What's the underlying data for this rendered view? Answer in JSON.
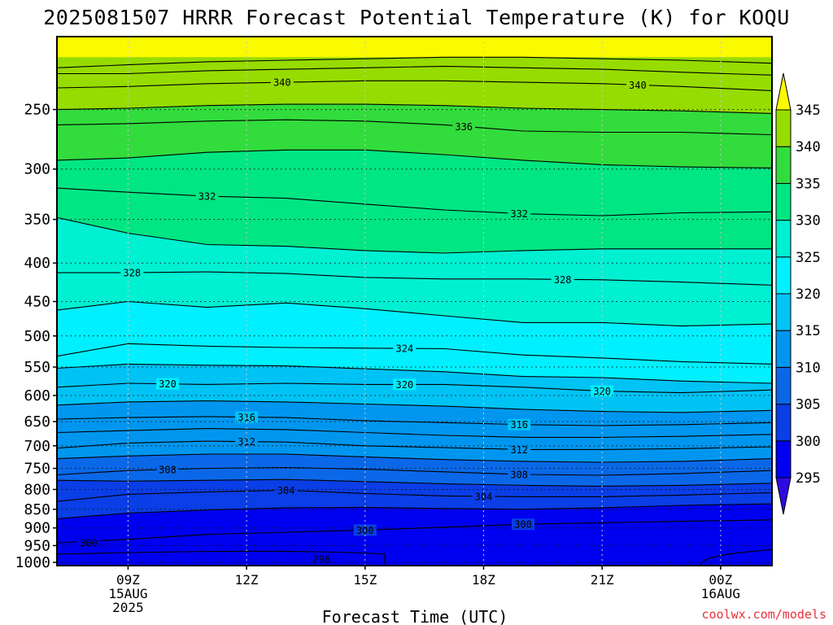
{
  "chart_data": {
    "type": "heatmap",
    "title": "2025081507 HRRR Forecast Potential Temperature (K) for KOQU",
    "xlabel": "Forecast Time (UTC)",
    "ylabel": "",
    "y_scale": "log-pressure",
    "ylim_hpa": [
      1010,
      200
    ],
    "xlim_hours": [
      7.2,
      25.3
    ],
    "y_ticks": [
      250,
      300,
      350,
      400,
      450,
      500,
      550,
      600,
      650,
      700,
      750,
      800,
      850,
      900,
      950,
      1000
    ],
    "x_ticks": [
      {
        "hour": 9,
        "lines": [
          "09Z",
          "15AUG",
          "2025"
        ]
      },
      {
        "hour": 12,
        "lines": [
          "12Z"
        ]
      },
      {
        "hour": 15,
        "lines": [
          "15Z"
        ]
      },
      {
        "hour": 18,
        "lines": [
          "18Z"
        ]
      },
      {
        "hour": 21,
        "lines": [
          "21Z"
        ]
      },
      {
        "hour": 24,
        "lines": [
          "00Z",
          "16AUG"
        ]
      }
    ],
    "colorbar": {
      "levels": [
        295,
        300,
        305,
        310,
        315,
        320,
        325,
        330,
        335,
        340,
        345
      ],
      "colors": [
        "#2f0ae0",
        "#0000f0",
        "#0a3ee6",
        "#0a68e8",
        "#0096f0",
        "#00c3f5",
        "#00f0ff",
        "#00f0d2",
        "#00e682",
        "#32dc3c",
        "#96dc00",
        "#fafa00"
      ]
    },
    "contour_interval": 2,
    "bands_top_to_bottom": [
      {
        "value": 346,
        "top_hpa": 200
      },
      {
        "value": 342,
        "top_hpa": 213
      },
      {
        "value": 338,
        "top_hpa": 262
      },
      {
        "value": 333,
        "top_hpa": 312
      },
      {
        "value": 328,
        "top_hpa": 383
      },
      {
        "value": 323,
        "top_hpa": 505
      },
      {
        "value": 318,
        "top_hpa": 590
      },
      {
        "value": 313,
        "top_hpa": 660
      },
      {
        "value": 308,
        "top_hpa": 725
      },
      {
        "value": 303,
        "top_hpa": 790
      },
      {
        "value": 298,
        "top_hpa": 905
      }
    ],
    "contours": [
      {
        "value": 344,
        "label": "",
        "p": [
          220,
          218,
          216,
          215,
          214,
          213,
          213,
          214,
          215,
          217
        ]
      },
      {
        "value": 342,
        "label": "",
        "p": [
          224,
          224,
          222,
          221,
          220,
          219,
          220,
          221,
          223,
          225
        ]
      },
      {
        "value": 340,
        "label": "340",
        "p": [
          234,
          233,
          231,
          230,
          229,
          229,
          230,
          231,
          233,
          236
        ]
      },
      {
        "value": 338,
        "label": "",
        "p": [
          250,
          249,
          247,
          246,
          246,
          247,
          249,
          250,
          251,
          253
        ]
      },
      {
        "value": 336,
        "label": "336",
        "p": [
          262,
          261,
          259,
          258,
          259,
          262,
          267,
          268,
          268,
          270
        ]
      },
      {
        "value": 334,
        "label": "",
        "p": [
          292,
          290,
          285,
          283,
          283,
          287,
          292,
          296,
          298,
          299
        ]
      },
      {
        "value": 332,
        "label": "332",
        "p": [
          318,
          322,
          326,
          328,
          334,
          340,
          344,
          346,
          343,
          342
        ]
      },
      {
        "value": 330,
        "label": "",
        "p": [
          348,
          365,
          378,
          380,
          385,
          388,
          385,
          383,
          383,
          383
        ]
      },
      {
        "value": 328,
        "label": "328",
        "p": [
          412,
          412,
          411,
          413,
          418,
          420,
          420,
          421,
          424,
          428
        ]
      },
      {
        "value": 326,
        "label": "",
        "p": [
          462,
          450,
          458,
          452,
          460,
          470,
          480,
          480,
          485,
          482
        ]
      },
      {
        "value": 324,
        "label": "324",
        "p": [
          532,
          512,
          516,
          518,
          519,
          520,
          530,
          535,
          541,
          545
        ]
      },
      {
        "value": 322,
        "label": "",
        "p": [
          552,
          545,
          547,
          548,
          553,
          558,
          566,
          568,
          574,
          578
        ]
      },
      {
        "value": 320,
        "label": "320",
        "p": [
          585,
          578,
          580,
          578,
          580,
          580,
          585,
          592,
          595,
          590
        ]
      },
      {
        "value": 318,
        "label": "",
        "p": [
          618,
          612,
          610,
          612,
          616,
          620,
          626,
          630,
          632,
          628
        ]
      },
      {
        "value": 316,
        "label": "316",
        "p": [
          645,
          642,
          640,
          642,
          648,
          652,
          656,
          658,
          656,
          652
        ]
      },
      {
        "value": 314,
        "label": "",
        "p": [
          672,
          668,
          664,
          666,
          672,
          678,
          682,
          682,
          680,
          676
        ]
      },
      {
        "value": 312,
        "label": "312",
        "p": [
          705,
          694,
          690,
          692,
          700,
          704,
          708,
          708,
          706,
          702
        ]
      },
      {
        "value": 310,
        "label": "",
        "p": [
          728,
          722,
          718,
          718,
          724,
          730,
          734,
          736,
          734,
          728
        ]
      },
      {
        "value": 308,
        "label": "308",
        "p": [
          765,
          755,
          750,
          748,
          752,
          758,
          764,
          766,
          762,
          755
        ]
      },
      {
        "value": 306,
        "label": "",
        "p": [
          778,
          780,
          778,
          776,
          781,
          786,
          790,
          792,
          790,
          785
        ]
      },
      {
        "value": 304,
        "label": "304",
        "p": [
          830,
          812,
          806,
          802,
          810,
          816,
          818,
          818,
          814,
          808
        ]
      },
      {
        "value": 302,
        "label": "",
        "p": [
          875,
          860,
          852,
          846,
          845,
          848,
          850,
          846,
          840,
          836
        ]
      },
      {
        "value": 300,
        "label": "300",
        "p": [
          942,
          932,
          918,
          912,
          906,
          898,
          890,
          886,
          882,
          878
        ]
      }
    ],
    "contour_hours": [
      7.2,
      9,
      11,
      13,
      15,
      17,
      19,
      21,
      23,
      25.3
    ],
    "contour_label_positions": [
      {
        "value": 340,
        "hour": 12.9
      },
      {
        "value": 340,
        "hour": 21.9
      },
      {
        "value": 336,
        "hour": 17.5
      },
      {
        "value": 332,
        "hour": 11.0
      },
      {
        "value": 332,
        "hour": 18.9
      },
      {
        "value": 328,
        "hour": 9.1
      },
      {
        "value": 328,
        "hour": 20.0
      },
      {
        "value": 324,
        "hour": 16.0
      },
      {
        "value": 320,
        "hour": 10.0
      },
      {
        "value": 320,
        "hour": 16.0
      },
      {
        "value": 320,
        "hour": 21.0
      },
      {
        "value": 316,
        "hour": 12.0
      },
      {
        "value": 316,
        "hour": 18.9
      },
      {
        "value": 312,
        "hour": 12.0
      },
      {
        "value": 312,
        "hour": 18.9
      },
      {
        "value": 308,
        "hour": 10.0
      },
      {
        "value": 308,
        "hour": 18.9
      },
      {
        "value": 304,
        "hour": 13.0
      },
      {
        "value": 304,
        "hour": 18.0
      },
      {
        "value": 300,
        "hour": 15.0
      },
      {
        "value": 300,
        "hour": 19.0
      }
    ],
    "extra_labels": [
      {
        "text": "300",
        "hour": 8.0,
        "p": 942
      },
      {
        "text": "296",
        "hour": 13.9,
        "p": 990
      }
    ],
    "ground_band_hpa": [
      1000,
      1013
    ],
    "ground_color": "#a8562e"
  },
  "credit": "coolwx.com/models"
}
